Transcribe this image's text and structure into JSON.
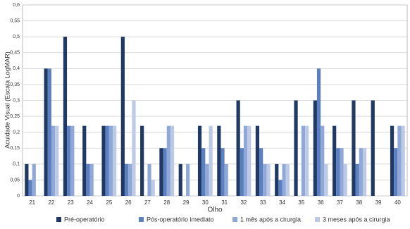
{
  "chart_data": {
    "type": "bar",
    "y_label": "Acuidade Visual (Escala LogMAR)",
    "x_label": "Olho",
    "categories": [
      "21",
      "22",
      "23",
      "24",
      "25",
      "26",
      "27",
      "28",
      "29",
      "30",
      "31",
      "32",
      "33",
      "34",
      "35",
      "36",
      "37",
      "38",
      "39",
      "40"
    ],
    "series": [
      {
        "name": "Pré-operatório",
        "color": "#1f3864",
        "values": [
          0.1,
          0.4,
          0.5,
          0.22,
          0.22,
          0.5,
          0.22,
          0.15,
          0.1,
          0.22,
          0.22,
          0.3,
          0.22,
          0.1,
          0.3,
          0.3,
          0.22,
          0.3,
          0.3,
          0.22
        ]
      },
      {
        "name": "Pós-operatório imediato",
        "color": "#5b7fbf",
        "values": [
          0.05,
          0.4,
          0.22,
          0.1,
          0.22,
          0.1,
          null,
          0.15,
          null,
          0.15,
          0.15,
          0.15,
          0.15,
          0.05,
          null,
          0.4,
          0.15,
          0.1,
          null,
          0.15
        ]
      },
      {
        "name": "1 mês após a cirurgia",
        "color": "#8fa8d8",
        "values": [
          0.1,
          0.22,
          0.22,
          0.1,
          0.22,
          0.1,
          0.1,
          0.22,
          0.1,
          0.1,
          0.1,
          0.22,
          0.1,
          0.1,
          0.22,
          0.22,
          0.15,
          0.15,
          null,
          0.22
        ]
      },
      {
        "name": "3 meses após a cirurgia",
        "color": "#bccae6",
        "values": [
          null,
          0.22,
          null,
          null,
          0.22,
          0.3,
          0.05,
          0.22,
          null,
          0.22,
          null,
          0.22,
          0.1,
          0.1,
          0.22,
          0.1,
          0.1,
          0.15,
          null,
          0.22
        ]
      }
    ],
    "ylim": [
      0,
      0.6
    ],
    "yticks": [
      0,
      {
        "value": 0.05,
        "label": "0,05"
      },
      {
        "value": 0.1,
        "label": "0,1"
      },
      {
        "value": 0.15,
        "label": "0,15"
      },
      {
        "value": 0.2,
        "label": "0,2"
      },
      {
        "value": 0.25,
        "label": "0,25"
      },
      {
        "value": 0.3,
        "label": "0,3"
      },
      {
        "value": 0.35,
        "label": "0,35"
      },
      {
        "value": 0.4,
        "label": "0,4"
      },
      {
        "value": 0.45,
        "label": "0,45"
      },
      {
        "value": 0.5,
        "label": "0,5"
      },
      {
        "value": 0.55,
        "label": "0,55"
      },
      {
        "value": 0.6,
        "label": "0,6"
      }
    ],
    "grid": true
  }
}
